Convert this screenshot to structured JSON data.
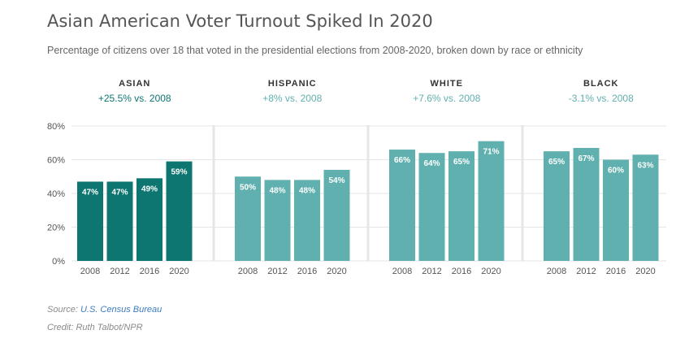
{
  "title": "Asian American Voter Turnout Spiked In 2020",
  "subtitle": "Percentage of citizens over 18 that voted in the presidential elections from 2008-2020, broken down by race or ethnicity",
  "source_label": "Source: ",
  "source_name": "U.S. Census Bureau",
  "credit": "Credit: Ruth Talbot/NPR",
  "colors": {
    "asian": "#0d7670",
    "other": "#5fb0ae",
    "axis_text": "#555555",
    "grid": "#e6e6e6",
    "divider": "#e6e6e6"
  },
  "chart_data": {
    "type": "bar",
    "categories": [
      "2008",
      "2012",
      "2016",
      "2020"
    ],
    "ylim": [
      0,
      80
    ],
    "yticks": [
      "0%",
      "20%",
      "40%",
      "60%",
      "80%"
    ],
    "grid": true,
    "panels": [
      {
        "name": "ASIAN",
        "change": "+25.5% vs. 2008",
        "values": [
          47,
          47,
          49,
          59
        ],
        "labels": [
          "47%",
          "47%",
          "49%",
          "59%"
        ],
        "color": "#0d7670"
      },
      {
        "name": "HISPANIC",
        "change": "+8% vs. 2008",
        "values": [
          50,
          48,
          48,
          54
        ],
        "labels": [
          "50%",
          "48%",
          "48%",
          "54%"
        ],
        "color": "#5fb0ae"
      },
      {
        "name": "WHITE",
        "change": "+7.6% vs. 2008",
        "values": [
          66,
          64,
          65,
          71
        ],
        "labels": [
          "66%",
          "64%",
          "65%",
          "71%"
        ],
        "color": "#5fb0ae"
      },
      {
        "name": "BLACK",
        "change": "-3.1% vs. 2008",
        "values": [
          65,
          67,
          60,
          63
        ],
        "labels": [
          "65%",
          "67%",
          "60%",
          "63%"
        ],
        "color": "#5fb0ae"
      }
    ]
  }
}
